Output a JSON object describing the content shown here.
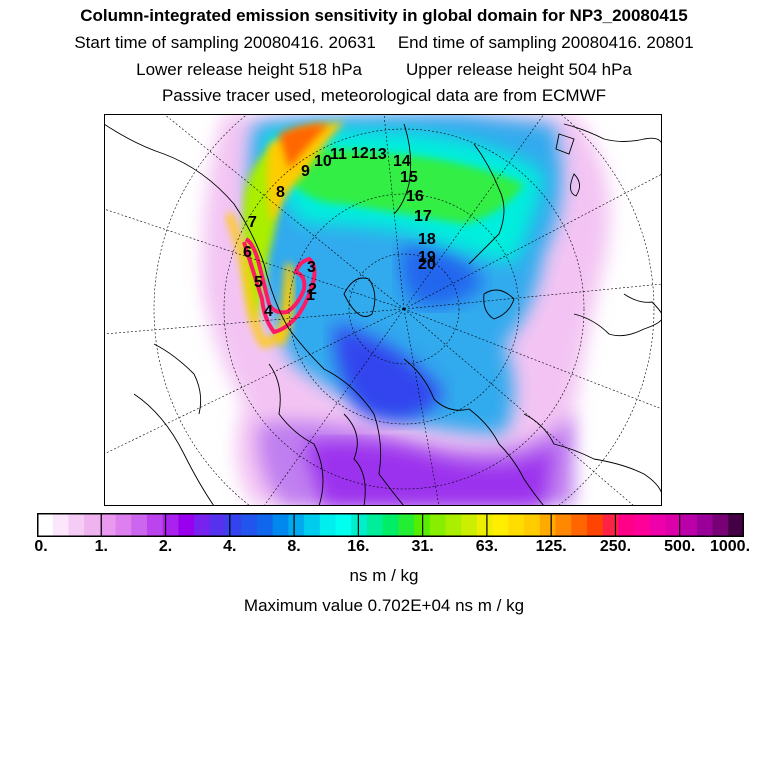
{
  "header": {
    "title": "Column-integrated emission sensitivity in global domain for NP3_20080415",
    "start_label": "Start time of sampling 20080416. 20631",
    "end_label": "End time of sampling 20080416. 20801",
    "lower_label": "Lower release height  518 hPa",
    "upper_label": "Upper release height  504 hPa",
    "tracer_label": "Passive tracer used, meteorological data are from ECMWF"
  },
  "map": {
    "projection": "north-polar-stereographic",
    "trajectory_labels": [
      "1",
      "2",
      "3",
      "4",
      "5",
      "6",
      "7",
      "8",
      "9",
      "10",
      "11",
      "12",
      "13",
      "14",
      "15",
      "16",
      "17",
      "18",
      "19",
      "20"
    ]
  },
  "colorbar": {
    "colors": [
      "#ffffff",
      "#fbe6fb",
      "#f5ccf5",
      "#efb3ef",
      "#e999ef",
      "#dd7fef",
      "#cc66ee",
      "#bb44ee",
      "#aa22ee",
      "#9900ee",
      "#7722ee",
      "#5533ee",
      "#3344ee",
      "#2255ee",
      "#1166ee",
      "#0088ee",
      "#00aaee",
      "#00ccee",
      "#00eeee",
      "#00ffee",
      "#00eecc",
      "#00ee99",
      "#00ee66",
      "#22ee33",
      "#55ee00",
      "#88ee00",
      "#aaee00",
      "#ccee00",
      "#eeee00",
      "#ffee00",
      "#ffdd00",
      "#ffcc00",
      "#ffaa00",
      "#ff8800",
      "#ff6600",
      "#ff4400",
      "#ff2244",
      "#ff0088",
      "#ff0099",
      "#ee00aa",
      "#dd00aa",
      "#bb00aa",
      "#990099",
      "#770077",
      "#440044"
    ],
    "tick_labels": [
      "0.",
      "1.",
      "2.",
      "4.",
      "8.",
      "16.",
      "31.",
      "63.",
      "125.",
      "250.",
      "500.",
      "1000."
    ],
    "unit": "ns m / kg"
  },
  "max_value_label": "Maximum value  0.702E+04 ns m / kg"
}
